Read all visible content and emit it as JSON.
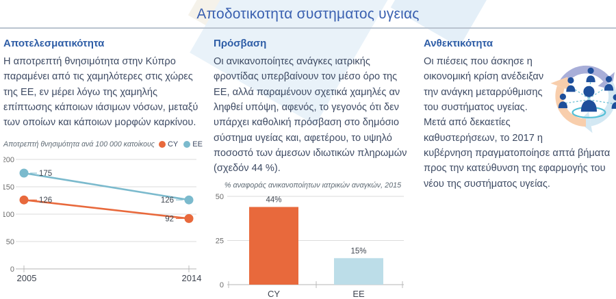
{
  "page_title": "Αποδοτικοτητα συστηματος υγειας",
  "columns": {
    "effectiveness": {
      "heading": "Αποτελεσματικότητα",
      "body": "Η αποτρεπτή θνησιμότητα στην Κύπρο παραμένει από τις χαμηλότερες στις χώρες της ΕΕ, εν μέρει λόγω της χαμηλής επίπτωσης κάποιων ιάσιμων νόσων, μεταξύ των οποίων και κάποιων μορφών καρκίνου."
    },
    "access": {
      "heading": "Πρόσβαση",
      "body": "Οι ανικανοποίητες ανάγκες ιατρικής φροντίδας υπερβαίνουν τον μέσο όρο της ΕΕ, αλλά παραμένουν σχετικά χαμηλές αν ληφθεί υπόψη, αφενός, το γεγονός ότι δεν υπάρχει καθολική πρόσβαση στο δημόσιο σύστημα υγείας και, αφετέρου, το υψηλό ποσοστό των άμεσων ιδιωτικών πληρωμών (σχεδόν 44 %)."
    },
    "resilience": {
      "heading": "Ανθεκτικότητα",
      "body": "Οι πιέσεις που άσκησε η οικονομική κρίση ανέδειξαν την ανάγκη μεταρρύθμισης του συστήματος υγείας. Μετά από δεκαετίες καθυστερήσεων, το 2017 η κυβέρνηση πραγματοποίησε απτά βήματα προς την κατεύθυνση της εφαρμογής του νέου της συστήματος υγείας.",
      "icon": "people-network-cycle-icon"
    }
  },
  "chart_data": [
    {
      "type": "line",
      "title": "Αποτρεπτή θνησιμότητα ανά 100 000 κατοίκους",
      "x": [
        "2005",
        "2014"
      ],
      "series": [
        {
          "name": "CY",
          "color": "#e8693c",
          "values": [
            126,
            92
          ]
        },
        {
          "name": "ΕΕ",
          "color": "#7bbacd",
          "values": [
            175,
            126
          ]
        }
      ],
      "ylim": [
        0,
        200
      ],
      "yticks": [
        0,
        50,
        100,
        150,
        200
      ],
      "grid": true,
      "legend_position": "top-right"
    },
    {
      "type": "bar",
      "title": "% αναφοράς ανικανοποίητων ιατρικών αναγκών, 2015",
      "categories": [
        "CY",
        "ΕΕ"
      ],
      "values": [
        44,
        15
      ],
      "value_labels": [
        "44%",
        "15%"
      ],
      "colors": [
        "#e8693c",
        "#bcdde8"
      ],
      "ylim": [
        0,
        50
      ],
      "yticks": [
        0,
        25,
        50
      ],
      "grid": true
    }
  ],
  "colors": {
    "title_blue": "#3a60b0",
    "heading_blue": "#2e5da6",
    "body_text": "#3d4a63",
    "accent_orange": "#e8693c",
    "accent_blue": "#7bbacd",
    "light_blue": "#bcdde8",
    "icon_navy": "#1e4f9b",
    "icon_lavender": "#a8aed8",
    "icon_peach": "#f8ceac",
    "icon_lightblue": "#d3e8f3",
    "icon_teal": "#53bfd6"
  }
}
